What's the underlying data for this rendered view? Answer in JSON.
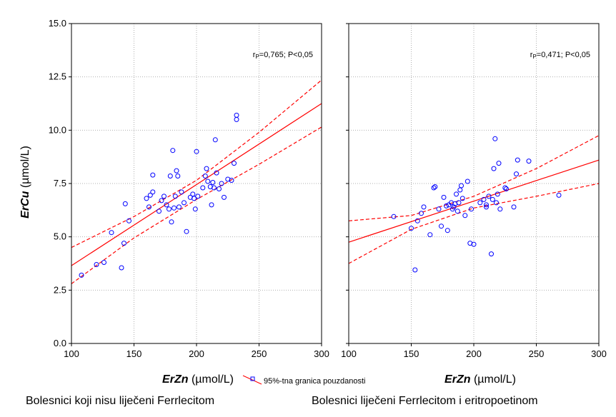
{
  "figure": {
    "ylabel_italic": "ErCu",
    "ylabel_unit": " (µmol/L)",
    "legend_label": "95%-tna granica pouzdanosti"
  },
  "chart_data": [
    {
      "type": "scatter",
      "title": "Bolesnici koji nisu liječeni Ferrlecitom",
      "xlabel_italic": "ErZn",
      "xlabel_unit": " (µmol/L)",
      "ylabel": "ErCu (µmol/L)",
      "annotation": "r=0,765; P<0,05",
      "xlim": [
        100,
        300
      ],
      "ylim": [
        0,
        15
      ],
      "xticks": [
        "100",
        "150",
        "200",
        "250",
        "300"
      ],
      "yticks": [
        "0.0",
        "2.5",
        "5.0",
        "7.5",
        "10.0",
        "12.5",
        "15.0"
      ],
      "grid": true,
      "regression": {
        "x": [
          100,
          300
        ],
        "y": [
          3.65,
          11.25
        ]
      },
      "ci_upper": {
        "x": [
          100,
          150,
          200,
          250,
          300
        ],
        "y": [
          4.5,
          5.95,
          7.65,
          9.9,
          12.35
        ]
      },
      "ci_lower": {
        "x": [
          100,
          150,
          200,
          250,
          300
        ],
        "y": [
          2.8,
          4.95,
          6.75,
          8.4,
          10.15
        ]
      },
      "points": [
        [
          108,
          3.2
        ],
        [
          120,
          3.7
        ],
        [
          126,
          3.8
        ],
        [
          132,
          5.2
        ],
        [
          140,
          3.55
        ],
        [
          142,
          4.7
        ],
        [
          143,
          6.55
        ],
        [
          146,
          5.75
        ],
        [
          160,
          6.8
        ],
        [
          162,
          6.4
        ],
        [
          163,
          6.95
        ],
        [
          165,
          7.1
        ],
        [
          165,
          7.9
        ],
        [
          170,
          6.2
        ],
        [
          172,
          6.7
        ],
        [
          174,
          6.9
        ],
        [
          176,
          6.5
        ],
        [
          178,
          6.3
        ],
        [
          179,
          7.85
        ],
        [
          180,
          5.7
        ],
        [
          181,
          9.05
        ],
        [
          182,
          6.35
        ],
        [
          183,
          6.9
        ],
        [
          184,
          8.1
        ],
        [
          185,
          7.85
        ],
        [
          186,
          6.4
        ],
        [
          188,
          7.1
        ],
        [
          190,
          6.6
        ],
        [
          192,
          5.25
        ],
        [
          195,
          6.85
        ],
        [
          197,
          7.0
        ],
        [
          198,
          6.8
        ],
        [
          199,
          6.3
        ],
        [
          200,
          9.0
        ],
        [
          201,
          6.9
        ],
        [
          205,
          7.3
        ],
        [
          207,
          7.85
        ],
        [
          208,
          8.2
        ],
        [
          209,
          7.6
        ],
        [
          211,
          7.35
        ],
        [
          212,
          6.5
        ],
        [
          213,
          7.55
        ],
        [
          214,
          7.3
        ],
        [
          215,
          9.55
        ],
        [
          216,
          8.0
        ],
        [
          218,
          7.25
        ],
        [
          220,
          7.5
        ],
        [
          222,
          6.85
        ],
        [
          225,
          7.7
        ],
        [
          228,
          7.65
        ],
        [
          230,
          8.45
        ],
        [
          232,
          10.5
        ],
        [
          232,
          10.7
        ]
      ]
    },
    {
      "type": "scatter",
      "title": "Bolesnici liječeni Ferrlecitom i eritropoetinom",
      "xlabel_italic": "ErZn",
      "xlabel_unit": " (µmol/L)",
      "ylabel": "",
      "annotation": "r=0,471; P<0,05",
      "xlim": [
        100,
        300
      ],
      "ylim": [
        0,
        15
      ],
      "xticks": [
        "100",
        "150",
        "200",
        "250",
        "300"
      ],
      "yticks": [
        "0.0",
        "2.5",
        "5.0",
        "7.5",
        "10.0",
        "12.5",
        "15.0"
      ],
      "grid": true,
      "regression": {
        "x": [
          100,
          300
        ],
        "y": [
          4.75,
          8.6
        ]
      },
      "ci_upper": {
        "x": [
          100,
          150,
          200,
          250,
          300
        ],
        "y": [
          5.75,
          6.0,
          6.9,
          8.2,
          9.75
        ]
      },
      "ci_lower": {
        "x": [
          100,
          150,
          200,
          250,
          300
        ],
        "y": [
          3.75,
          5.35,
          6.35,
          6.9,
          7.5
        ]
      },
      "points": [
        [
          136,
          5.95
        ],
        [
          150,
          5.4
        ],
        [
          153,
          3.45
        ],
        [
          155,
          5.75
        ],
        [
          158,
          6.1
        ],
        [
          160,
          6.4
        ],
        [
          165,
          5.1
        ],
        [
          168,
          7.3
        ],
        [
          169,
          7.35
        ],
        [
          172,
          6.3
        ],
        [
          174,
          5.5
        ],
        [
          176,
          6.85
        ],
        [
          178,
          6.45
        ],
        [
          179,
          5.3
        ],
        [
          180,
          6.5
        ],
        [
          182,
          6.6
        ],
        [
          183,
          6.3
        ],
        [
          184,
          6.4
        ],
        [
          185,
          6.55
        ],
        [
          186,
          7.0
        ],
        [
          187,
          6.2
        ],
        [
          188,
          6.6
        ],
        [
          189,
          7.2
        ],
        [
          190,
          7.4
        ],
        [
          191,
          6.8
        ],
        [
          193,
          6.0
        ],
        [
          195,
          7.6
        ],
        [
          197,
          4.7
        ],
        [
          198,
          6.3
        ],
        [
          200,
          4.65
        ],
        [
          205,
          6.6
        ],
        [
          208,
          6.75
        ],
        [
          210,
          6.5
        ],
        [
          210,
          6.4
        ],
        [
          212,
          6.9
        ],
        [
          214,
          4.2
        ],
        [
          215,
          6.75
        ],
        [
          216,
          8.2
        ],
        [
          217,
          9.6
        ],
        [
          218,
          6.6
        ],
        [
          219,
          7.0
        ],
        [
          220,
          8.45
        ],
        [
          221,
          6.3
        ],
        [
          225,
          7.3
        ],
        [
          226,
          7.25
        ],
        [
          232,
          6.4
        ],
        [
          234,
          7.95
        ],
        [
          235,
          8.6
        ],
        [
          244,
          8.55
        ],
        [
          268,
          6.95
        ]
      ]
    }
  ]
}
